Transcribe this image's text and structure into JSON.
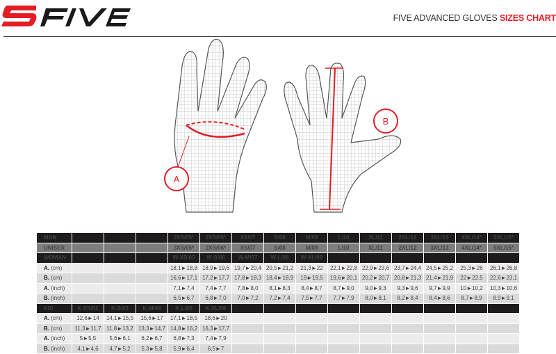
{
  "brand": {
    "logo_text": "5FIVE",
    "colors": {
      "red": "#e21d24",
      "dark": "#1d1b1b",
      "grey": "#7d7d7d"
    }
  },
  "header": {
    "title_main": "FIVE ADVANCED GLOVES",
    "title_accent": "SIZES CHART"
  },
  "diagram": {
    "label_a": "A",
    "label_b": "B"
  },
  "table": {
    "rows": [
      {
        "style": "hdark",
        "label": "MAN",
        "cells": [
          "",
          "",
          "",
          "3XS/05*",
          "2XS/06*",
          "XS/07",
          "S/08",
          "M/09",
          "L/10",
          "XL/11",
          "2XL/12",
          "3XL/13",
          "4XL/14*",
          "5XL/15*"
        ]
      },
      {
        "style": "hgrey",
        "label": "UNISEX",
        "cells": [
          "",
          "",
          "",
          "3XS/05*",
          "2XS/06*",
          "XS/07",
          "S/08",
          "M/09",
          "L/10",
          "XL/11",
          "2XL/12",
          "3XL/13",
          "4XL/14*",
          "5XL/15*"
        ]
      },
      {
        "style": "hdark",
        "label": "WOMAN",
        "cells": [
          "",
          "",
          "",
          "W-XS/05",
          "W-S/06",
          "W-M/07",
          "W-L/08",
          "W-XL/09",
          "",
          "",
          "",
          "",
          "",
          ""
        ]
      },
      {
        "style": "d1",
        "label": "A.",
        "unit": "(cm)",
        "cells": [
          "",
          "",
          "",
          "18,1►18,8",
          "18,9►19,6",
          "19,7►20,4",
          "20,5►21,2",
          "21,3►22",
          "22,1►22,8",
          "22,9►23,6",
          "23,7►24,4",
          "24,5►25,2",
          "25,3►26",
          "26,1►26,8"
        ]
      },
      {
        "style": "d2",
        "label": "B.",
        "unit": "(cm)",
        "cells": [
          "",
          "",
          "",
          "16,6►17,1",
          "17,2►17,7",
          "17,8►18,3",
          "18,4►18,9",
          "19►19,5",
          "19,6►20,1",
          "20,2►20,7",
          "20,8►21,3",
          "21,4►21,9",
          "22►22,5",
          "22,6►23,1"
        ]
      },
      {
        "style": "d1",
        "label": "A.",
        "unit": "(inch)",
        "cells": [
          "",
          "",
          "",
          "7,1►7,4",
          "7,4►7,7",
          "7,8►8,0",
          "8,1►8,3",
          "8,4►8,7",
          "8,7►9,0",
          "9,0►9,3",
          "9,3►9,6",
          "9,7►9,9",
          "10►10,2",
          "10,3►10,6"
        ]
      },
      {
        "style": "d2",
        "label": "B.",
        "unit": "(inch)",
        "cells": [
          "",
          "",
          "",
          "6,5►6,7",
          "6,8►7,0",
          "7,0►7,2",
          "7,2►7,4",
          "7,5►7,7",
          "7,7►7,9",
          "8,0►8,1",
          "8,2►8,4",
          "8,4►8,6",
          "8,7►8,9",
          "8,9►9,1"
        ]
      },
      {
        "style": "hdark",
        "label": "KID",
        "cells": [
          "K-XS/02",
          "K-S/03",
          "K-M/04",
          "K-L/05",
          "K-XL/06",
          "",
          "",
          "",
          "",
          "",
          "",
          "",
          "",
          ""
        ]
      },
      {
        "style": "d1",
        "label": "A.",
        "unit": "(cm)",
        "cells": [
          "12,6►14",
          "14,1►15,5",
          "15,6►17",
          "17,1►18,5",
          "18,6►20",
          "",
          "",
          "",
          "",
          "",
          "",
          "",
          "",
          ""
        ]
      },
      {
        "style": "d2",
        "label": "B.",
        "unit": "(cm)",
        "cells": [
          "11,3►11,7",
          "11,8►13,2",
          "13,3►14,7",
          "14,8►16,2",
          "16,3►17,7",
          "",
          "",
          "",
          "",
          "",
          "",
          "",
          "",
          ""
        ]
      },
      {
        "style": "d1",
        "label": "A.",
        "unit": "(inch)",
        "cells": [
          "5►5,5",
          "5,6►6,1",
          "6,2►6,7",
          "6,8►7,3",
          "7,4►7,9",
          "",
          "",
          "",
          "",
          "",
          "",
          "",
          "",
          ""
        ]
      },
      {
        "style": "d2",
        "label": "B.",
        "unit": "(inch)",
        "cells": [
          "4,1►4,6",
          "4,7►5,2",
          "5,3►5,8",
          "5,9►6,4",
          "6,5►7",
          "",
          "",
          "",
          "",
          "",
          "",
          "",
          "",
          ""
        ]
      }
    ]
  }
}
